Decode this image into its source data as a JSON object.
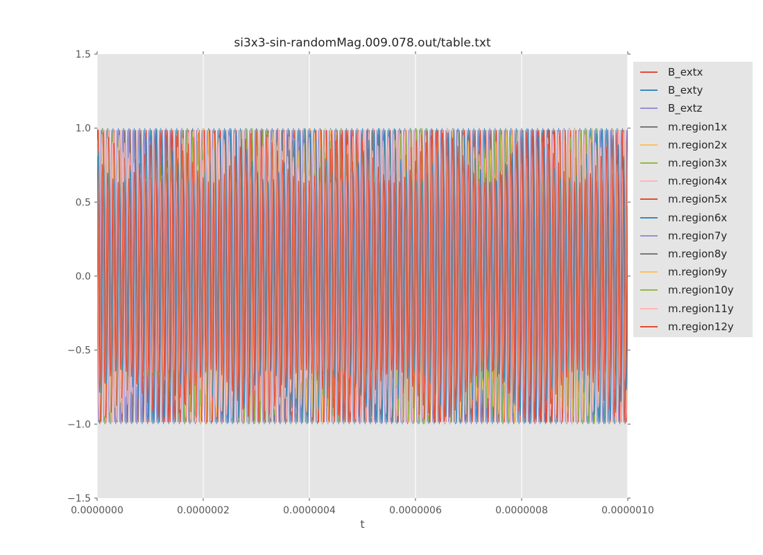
{
  "figure": {
    "background": "#ffffff",
    "plot_background": "#e5e5e5",
    "grid_color": "#ffffff",
    "tick_color": "#555555",
    "tick_label_color": "#555555",
    "axis_label_color": "#555555",
    "title_color": "#262626",
    "legend_background": "#e5e5e5",
    "legend_text_color": "#262626"
  },
  "chart_data": {
    "type": "line",
    "title": "si3x3-sin-randomMag.009.078.out/table.txt",
    "xlabel": "t",
    "ylabel": "",
    "xlim": [
      0,
      1e-06
    ],
    "ylim": [
      -1.5,
      1.5
    ],
    "x_ticks": {
      "values": [
        0,
        2e-07,
        4e-07,
        6e-07,
        8e-07,
        1e-06
      ],
      "labels": [
        "0.0000000",
        "0.0000002",
        "0.0000004",
        "0.0000006",
        "0.0000008",
        "0.0000010"
      ]
    },
    "y_ticks": {
      "values": [
        1.5,
        1.0,
        0.5,
        0.0,
        -0.5,
        -1.0,
        -1.5
      ],
      "labels": [
        "1.5",
        "1.0",
        "0.5",
        "0.0",
        "−0.5",
        "−1.0",
        "−1.5"
      ]
    },
    "grid": {
      "vertical": true,
      "horizontal": false
    },
    "legend_position": "outside-right-top",
    "waveform": {
      "model": "y(u) = (amplitude + beat_depth*sin(2*pi*beat_cycles*u + beat_phase)) * sin(2*pi*cycles*u + phase), u = t/1e-06",
      "cycles": 100,
      "note": "15 overlapping sinusoids, ~100 periods across the 1 microsecond window; external field traces reach ±1.0, magnetization traces beat with peak envelope between ~0.64 and 1.0"
    },
    "series": [
      {
        "name": "B_extx",
        "color": "#E24A33",
        "amplitude": 1.0,
        "phase": 0.0,
        "beat_depth": 0.0,
        "beat_cycles": 0.0,
        "beat_phase": 0.0
      },
      {
        "name": "B_exty",
        "color": "#348ABD",
        "amplitude": 1.0,
        "phase": 1.5708,
        "beat_depth": 0.0,
        "beat_cycles": 0.0,
        "beat_phase": 0.0
      },
      {
        "name": "B_extz",
        "color": "#988ED5",
        "amplitude": 1.0,
        "phase": 3.1416,
        "beat_depth": 0.0,
        "beat_cycles": 0.0,
        "beat_phase": 0.0
      },
      {
        "name": "m.region1x",
        "color": "#777777",
        "amplitude": 0.82,
        "phase": 0.3,
        "beat_depth": 0.18,
        "beat_cycles": 4.0,
        "beat_phase": 0.0
      },
      {
        "name": "m.region2x",
        "color": "#FBC15E",
        "amplitude": 0.82,
        "phase": 0.55,
        "beat_depth": 0.18,
        "beat_cycles": 5.2,
        "beat_phase": 1.1
      },
      {
        "name": "m.region3x",
        "color": "#8EBA42",
        "amplitude": 0.82,
        "phase": 0.18,
        "beat_depth": 0.18,
        "beat_cycles": 3.1,
        "beat_phase": 2.2
      },
      {
        "name": "m.region4x",
        "color": "#FFB5B8",
        "amplitude": 0.82,
        "phase": 0.42,
        "beat_depth": 0.18,
        "beat_cycles": 6.3,
        "beat_phase": 0.6
      },
      {
        "name": "m.region5x",
        "color": "#E24A33",
        "amplitude": 0.82,
        "phase": 0.65,
        "beat_depth": 0.18,
        "beat_cycles": 4.7,
        "beat_phase": 1.7
      },
      {
        "name": "m.region6x",
        "color": "#348ABD",
        "amplitude": 0.82,
        "phase": 0.1,
        "beat_depth": 0.18,
        "beat_cycles": 7.1,
        "beat_phase": 2.9
      },
      {
        "name": "m.region7y",
        "color": "#988ED5",
        "amplitude": 0.82,
        "phase": 1.85,
        "beat_depth": 0.18,
        "beat_cycles": 3.6,
        "beat_phase": 0.3
      },
      {
        "name": "m.region8y",
        "color": "#777777",
        "amplitude": 0.82,
        "phase": 2.05,
        "beat_depth": 0.18,
        "beat_cycles": 5.9,
        "beat_phase": 1.4
      },
      {
        "name": "m.region9y",
        "color": "#FBC15E",
        "amplitude": 0.82,
        "phase": 1.65,
        "beat_depth": 0.18,
        "beat_cycles": 4.3,
        "beat_phase": 2.5
      },
      {
        "name": "m.region10y",
        "color": "#8EBA42",
        "amplitude": 0.82,
        "phase": 1.95,
        "beat_depth": 0.18,
        "beat_cycles": 6.7,
        "beat_phase": 0.9
      },
      {
        "name": "m.region11y",
        "color": "#FFB5B8",
        "amplitude": 0.82,
        "phase": 2.15,
        "beat_depth": 0.18,
        "beat_cycles": 3.3,
        "beat_phase": 2.0
      },
      {
        "name": "m.region12y",
        "color": "#E24A33",
        "amplitude": 0.82,
        "phase": 1.75,
        "beat_depth": 0.18,
        "beat_cycles": 5.8,
        "beat_phase": 3.1
      }
    ]
  }
}
